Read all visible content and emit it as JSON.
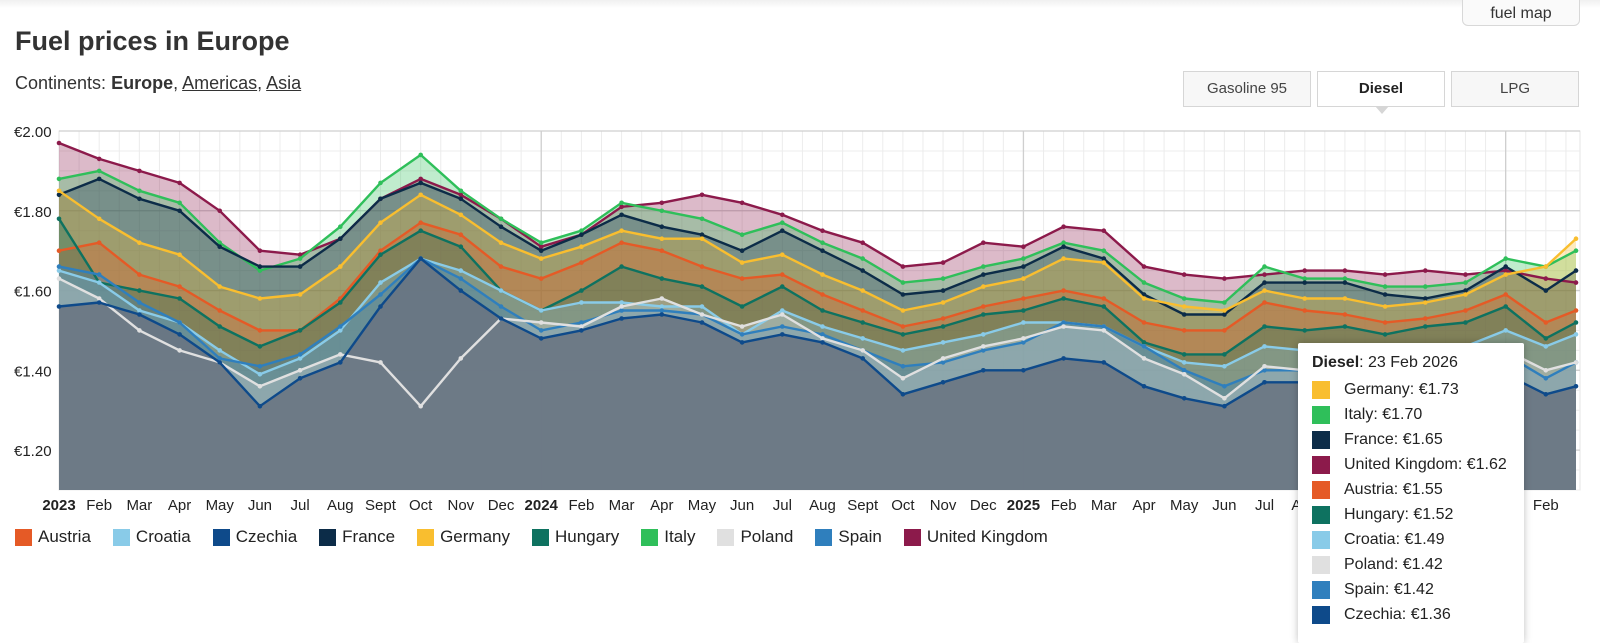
{
  "header": {
    "title": "Fuel prices in Europe",
    "map_button": "fuel map"
  },
  "continents": {
    "label": "Continents:",
    "active": "Europe",
    "links": [
      "Americas",
      "Asia"
    ]
  },
  "tabs": [
    {
      "label": "Gasoline 95",
      "active": false
    },
    {
      "label": "Diesel",
      "active": true
    },
    {
      "label": "LPG",
      "active": false
    }
  ],
  "chart_data": {
    "type": "area",
    "title": "",
    "xlabel": "",
    "ylabel": "",
    "ylim": [
      1.1,
      2.0
    ],
    "y_ticks": [
      "€2.00",
      "€1.80",
      "€1.60",
      "€1.40",
      "€1.20"
    ],
    "y_tick_values": [
      2.0,
      1.8,
      1.6,
      1.4,
      1.2
    ],
    "x_range_months": [
      0,
      37.85
    ],
    "x_ticks": [
      {
        "m": 0,
        "label": "2023",
        "bold": true
      },
      {
        "m": 1,
        "label": "Feb"
      },
      {
        "m": 2,
        "label": "Mar"
      },
      {
        "m": 3,
        "label": "Apr"
      },
      {
        "m": 4,
        "label": "May"
      },
      {
        "m": 5,
        "label": "Jun"
      },
      {
        "m": 6,
        "label": "Jul"
      },
      {
        "m": 7,
        "label": "Aug"
      },
      {
        "m": 8,
        "label": "Sept"
      },
      {
        "m": 9,
        "label": "Oct"
      },
      {
        "m": 10,
        "label": "Nov"
      },
      {
        "m": 11,
        "label": "Dec"
      },
      {
        "m": 12,
        "label": "2024",
        "bold": true
      },
      {
        "m": 13,
        "label": "Feb"
      },
      {
        "m": 14,
        "label": "Mar"
      },
      {
        "m": 15,
        "label": "Apr"
      },
      {
        "m": 16,
        "label": "May"
      },
      {
        "m": 17,
        "label": "Jun"
      },
      {
        "m": 18,
        "label": "Jul"
      },
      {
        "m": 19,
        "label": "Aug"
      },
      {
        "m": 20,
        "label": "Sept"
      },
      {
        "m": 21,
        "label": "Oct"
      },
      {
        "m": 22,
        "label": "Nov"
      },
      {
        "m": 23,
        "label": "Dec"
      },
      {
        "m": 24,
        "label": "2025",
        "bold": true
      },
      {
        "m": 25,
        "label": "Feb"
      },
      {
        "m": 26,
        "label": "Mar"
      },
      {
        "m": 27,
        "label": "Apr"
      },
      {
        "m": 28,
        "label": "May"
      },
      {
        "m": 29,
        "label": "Jun"
      },
      {
        "m": 30,
        "label": "Jul"
      },
      {
        "m": 31,
        "label": "Aug"
      },
      {
        "m": 32,
        "label": "Sep"
      },
      {
        "m": 33,
        "label": "Oct"
      },
      {
        "m": 34,
        "label": "Nov"
      },
      {
        "m": 35,
        "label": "Dec"
      },
      {
        "m": 36,
        "label": "2026",
        "bold": true
      },
      {
        "m": 37,
        "label": "Feb"
      }
    ],
    "x_months": [
      0,
      1,
      2,
      3,
      4,
      5,
      6,
      7,
      8,
      9,
      10,
      11,
      12,
      13,
      14,
      15,
      16,
      17,
      18,
      19,
      20,
      21,
      22,
      23,
      24,
      25,
      26,
      27,
      28,
      29,
      30,
      31,
      32,
      33,
      34,
      35,
      36,
      37,
      37.75
    ],
    "series": [
      {
        "name": "United Kingdom",
        "color": "#8c1a4b",
        "values": [
          1.97,
          1.93,
          1.9,
          1.87,
          1.8,
          1.7,
          1.69,
          1.73,
          1.83,
          1.88,
          1.84,
          1.78,
          1.71,
          1.74,
          1.81,
          1.82,
          1.84,
          1.82,
          1.79,
          1.75,
          1.72,
          1.66,
          1.67,
          1.72,
          1.71,
          1.76,
          1.75,
          1.66,
          1.64,
          1.63,
          1.64,
          1.65,
          1.65,
          1.64,
          1.65,
          1.64,
          1.65,
          1.63,
          1.62
        ]
      },
      {
        "name": "Italy",
        "color": "#2fbf5a",
        "values": [
          1.88,
          1.9,
          1.85,
          1.82,
          1.72,
          1.65,
          1.68,
          1.76,
          1.87,
          1.94,
          1.85,
          1.78,
          1.72,
          1.75,
          1.82,
          1.8,
          1.78,
          1.74,
          1.77,
          1.72,
          1.68,
          1.62,
          1.63,
          1.66,
          1.68,
          1.72,
          1.7,
          1.62,
          1.58,
          1.57,
          1.66,
          1.63,
          1.63,
          1.61,
          1.61,
          1.62,
          1.68,
          1.66,
          1.7
        ]
      },
      {
        "name": "France",
        "color": "#0c2c48",
        "values": [
          1.84,
          1.88,
          1.83,
          1.8,
          1.71,
          1.66,
          1.66,
          1.73,
          1.83,
          1.87,
          1.83,
          1.76,
          1.7,
          1.74,
          1.79,
          1.76,
          1.74,
          1.7,
          1.75,
          1.7,
          1.65,
          1.59,
          1.6,
          1.64,
          1.66,
          1.71,
          1.68,
          1.59,
          1.54,
          1.54,
          1.62,
          1.62,
          1.62,
          1.59,
          1.58,
          1.6,
          1.66,
          1.6,
          1.65
        ]
      },
      {
        "name": "Germany",
        "color": "#f9be2f",
        "values": [
          1.85,
          1.78,
          1.72,
          1.69,
          1.61,
          1.58,
          1.59,
          1.66,
          1.77,
          1.84,
          1.79,
          1.72,
          1.68,
          1.71,
          1.75,
          1.73,
          1.73,
          1.67,
          1.69,
          1.64,
          1.6,
          1.55,
          1.57,
          1.61,
          1.63,
          1.68,
          1.67,
          1.58,
          1.56,
          1.55,
          1.6,
          1.58,
          1.58,
          1.56,
          1.57,
          1.59,
          1.64,
          1.66,
          1.73
        ]
      },
      {
        "name": "Austria",
        "color": "#e55a26",
        "values": [
          1.7,
          1.72,
          1.64,
          1.61,
          1.55,
          1.5,
          1.5,
          1.58,
          1.7,
          1.77,
          1.74,
          1.66,
          1.63,
          1.67,
          1.72,
          1.7,
          1.66,
          1.63,
          1.64,
          1.59,
          1.55,
          1.51,
          1.53,
          1.56,
          1.58,
          1.6,
          1.58,
          1.52,
          1.5,
          1.5,
          1.57,
          1.55,
          1.54,
          1.52,
          1.53,
          1.55,
          1.59,
          1.52,
          1.55
        ]
      },
      {
        "name": "Hungary",
        "color": "#0e7260",
        "values": [
          1.78,
          1.62,
          1.6,
          1.58,
          1.51,
          1.46,
          1.5,
          1.57,
          1.69,
          1.75,
          1.71,
          1.6,
          1.55,
          1.6,
          1.66,
          1.63,
          1.61,
          1.56,
          1.61,
          1.55,
          1.52,
          1.49,
          1.51,
          1.54,
          1.55,
          1.58,
          1.56,
          1.47,
          1.44,
          1.44,
          1.51,
          1.5,
          1.51,
          1.49,
          1.51,
          1.52,
          1.56,
          1.48,
          1.52
        ]
      },
      {
        "name": "Croatia",
        "color": "#89cbe8",
        "values": [
          1.65,
          1.62,
          1.55,
          1.52,
          1.45,
          1.39,
          1.43,
          1.5,
          1.62,
          1.68,
          1.65,
          1.6,
          1.55,
          1.57,
          1.57,
          1.56,
          1.56,
          1.49,
          1.55,
          1.51,
          1.48,
          1.45,
          1.47,
          1.49,
          1.52,
          1.52,
          1.51,
          1.46,
          1.42,
          1.41,
          1.46,
          1.45,
          1.46,
          1.44,
          1.45,
          1.46,
          1.5,
          1.46,
          1.49
        ]
      },
      {
        "name": "Spain",
        "color": "#2f7fbd",
        "values": [
          1.66,
          1.64,
          1.57,
          1.52,
          1.43,
          1.41,
          1.44,
          1.51,
          1.59,
          1.68,
          1.63,
          1.56,
          1.5,
          1.52,
          1.55,
          1.55,
          1.54,
          1.49,
          1.51,
          1.49,
          1.45,
          1.41,
          1.42,
          1.45,
          1.47,
          1.52,
          1.51,
          1.46,
          1.4,
          1.36,
          1.4,
          1.4,
          1.41,
          1.39,
          1.4,
          1.41,
          1.44,
          1.38,
          1.42
        ]
      },
      {
        "name": "Poland",
        "color": "#e0e0e0",
        "values": [
          1.63,
          1.58,
          1.5,
          1.45,
          1.42,
          1.36,
          1.4,
          1.44,
          1.42,
          1.31,
          1.43,
          1.53,
          1.52,
          1.51,
          1.56,
          1.58,
          1.54,
          1.51,
          1.54,
          1.48,
          1.45,
          1.38,
          1.43,
          1.46,
          1.48,
          1.51,
          1.5,
          1.43,
          1.39,
          1.33,
          1.41,
          1.4,
          1.42,
          1.4,
          1.4,
          1.42,
          1.45,
          1.4,
          1.42
        ]
      },
      {
        "name": "Czechia",
        "color": "#0e4a8a",
        "values": [
          1.56,
          1.57,
          1.54,
          1.49,
          1.42,
          1.31,
          1.38,
          1.42,
          1.56,
          1.68,
          1.6,
          1.53,
          1.48,
          1.5,
          1.53,
          1.54,
          1.52,
          1.47,
          1.49,
          1.47,
          1.43,
          1.34,
          1.37,
          1.4,
          1.4,
          1.43,
          1.42,
          1.36,
          1.33,
          1.31,
          1.37,
          1.37,
          1.38,
          1.36,
          1.36,
          1.37,
          1.39,
          1.34,
          1.36
        ]
      }
    ],
    "legend": {
      "position": "bottom-left",
      "items": [
        {
          "name": "Austria",
          "color": "#e55a26"
        },
        {
          "name": "Croatia",
          "color": "#89cbe8"
        },
        {
          "name": "Czechia",
          "color": "#0e4a8a"
        },
        {
          "name": "France",
          "color": "#0c2c48"
        },
        {
          "name": "Germany",
          "color": "#f9be2f"
        },
        {
          "name": "Hungary",
          "color": "#0e7260"
        },
        {
          "name": "Italy",
          "color": "#2fbf5a"
        },
        {
          "name": "Poland",
          "color": "#e0e0e0"
        },
        {
          "name": "Spain",
          "color": "#2f7fbd"
        },
        {
          "name": "United Kingdom",
          "color": "#8c1a4b"
        }
      ]
    },
    "grid": true
  },
  "tooltip": {
    "fuel": "Diesel",
    "date": ": 23 Feb 2026",
    "rows": [
      {
        "label": "Germany: €1.73",
        "color": "#f9be2f"
      },
      {
        "label": "Italy: €1.70",
        "color": "#2fbf5a"
      },
      {
        "label": "France: €1.65",
        "color": "#0c2c48"
      },
      {
        "label": "United Kingdom: €1.62",
        "color": "#8c1a4b"
      },
      {
        "label": "Austria: €1.55",
        "color": "#e55a26"
      },
      {
        "label": "Hungary: €1.52",
        "color": "#0e7260"
      },
      {
        "label": "Croatia: €1.49",
        "color": "#89cbe8"
      },
      {
        "label": "Poland: €1.42",
        "color": "#e0e0e0"
      },
      {
        "label": "Spain: €1.42",
        "color": "#2f7fbd"
      },
      {
        "label": "Czechia: €1.36",
        "color": "#0e4a8a"
      }
    ]
  }
}
